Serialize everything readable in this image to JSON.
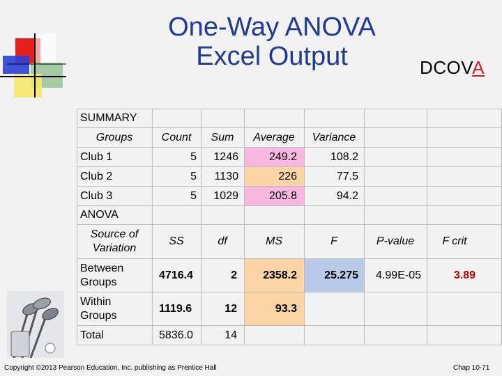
{
  "slide": {
    "title_line1": "One-Way ANOVA",
    "title_line2": "Excel Output",
    "brand_prefix": "DCOV",
    "brand_accent": "A",
    "copyright": "Copyright ©2013 Pearson Education, Inc. publishing as Prentice Hall",
    "page": "Chap 10-71"
  },
  "summary": {
    "label": "SUMMARY",
    "headers": [
      "Groups",
      "Count",
      "Sum",
      "Average",
      "Variance"
    ],
    "rows": [
      {
        "group": "Club 1",
        "count": "5",
        "sum": "1246",
        "average": "249.2",
        "variance": "108.2"
      },
      {
        "group": "Club 2",
        "count": "5",
        "sum": "1130",
        "average": "226",
        "variance": "77.5"
      },
      {
        "group": "Club 3",
        "count": "5",
        "sum": "1029",
        "average": "205.8",
        "variance": "94.2"
      }
    ]
  },
  "anova": {
    "label": "ANOVA",
    "headers": {
      "source_l1": "Source of",
      "source_l2": "Variation",
      "ss": "SS",
      "df": "df",
      "ms": "MS",
      "f": "F",
      "pvalue": "P-value",
      "fcrit": "F crit"
    },
    "rows": [
      {
        "source_l1": "Between",
        "source_l2": "Groups",
        "ss": "4716.4",
        "df": "2",
        "ms": "2358.2",
        "f": "25.275",
        "pvalue": "4.99E-05",
        "fcrit": "3.89"
      },
      {
        "source_l1": "Within",
        "source_l2": "Groups",
        "ss": "1119.6",
        "df": "12",
        "ms": "93.3"
      },
      {
        "source_l1": "Total",
        "ss": "5836.0",
        "df": "14"
      }
    ]
  },
  "colors": {
    "title": "#1f3a93",
    "average_highlight_1": "#f8b7e0",
    "average_highlight_2": "#fbd3a5",
    "ms_highlight": "#fbd3a5",
    "f_highlight": "#b9c9e8",
    "fcrit": "#c00000",
    "brand_accent": "#d42020"
  }
}
